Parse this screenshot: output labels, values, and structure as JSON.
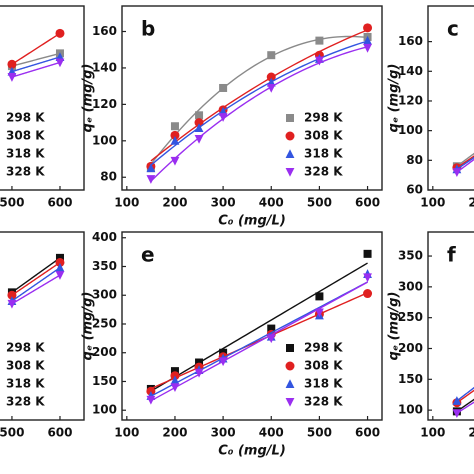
{
  "chart_data": [
    {
      "type": "scatter",
      "xlim": [
        90,
        650
      ],
      "xticks": [
        500,
        600
      ],
      "ylim": [
        73,
        174
      ],
      "x": [
        500,
        600
      ],
      "fit_degree": 2,
      "legend": "lower right",
      "series": [
        {
          "name": "298 K",
          "color": "#8a8a8a",
          "marker": "square",
          "values": [
            141,
            148
          ]
        },
        {
          "name": "308 K",
          "color": "#e02020",
          "marker": "circle",
          "values": [
            142,
            159
          ]
        },
        {
          "name": "318 K",
          "color": "#3355e0",
          "marker": "triangle-up",
          "values": [
            138,
            146
          ]
        },
        {
          "name": "328 K",
          "color": "#9a2ef0",
          "marker": "triangle-down",
          "values": [
            135,
            143
          ]
        }
      ]
    },
    {
      "type": "scatter",
      "panel_label": "b",
      "xlabel": "C₀ (mg/L)",
      "ylabel": "qₑ (mg/g)",
      "xlim": [
        90,
        630
      ],
      "xticks": [
        100,
        200,
        300,
        400,
        500,
        600
      ],
      "ylim": [
        73,
        174
      ],
      "yticks": [
        80,
        100,
        120,
        140,
        160
      ],
      "x": [
        150,
        200,
        250,
        300,
        400,
        500,
        600
      ],
      "fit_degree": 2,
      "legend": "lower right",
      "series": [
        {
          "name": "298 K",
          "color": "#8a8a8a",
          "marker": "square",
          "values": [
            85,
            108,
            114,
            129,
            147,
            155,
            157
          ]
        },
        {
          "name": "308 K",
          "color": "#e02020",
          "marker": "circle",
          "values": [
            86,
            103,
            110,
            117,
            135,
            147,
            162
          ]
        },
        {
          "name": "318 K",
          "color": "#3355e0",
          "marker": "triangle-up",
          "values": [
            85,
            100,
            107,
            116,
            132,
            145,
            155
          ]
        },
        {
          "name": "328 K",
          "color": "#9a2ef0",
          "marker": "triangle-down",
          "values": [
            79,
            89,
            101,
            113,
            129,
            144,
            151
          ]
        }
      ]
    },
    {
      "type": "scatter",
      "panel_label": "c",
      "ylabel": "qₑ (mg/g)",
      "xlim": [
        90,
        630
      ],
      "xticks": [
        100,
        200
      ],
      "ylim": [
        60,
        184
      ],
      "yticks": [
        60,
        80,
        100,
        120,
        140,
        160
      ],
      "x": [
        150,
        200
      ],
      "fit_degree": 2,
      "series": [
        {
          "color": "#8a8a8a",
          "marker": "square",
          "values": [
            76,
            88
          ]
        },
        {
          "color": "#e02020",
          "marker": "circle",
          "values": [
            75,
            86
          ]
        },
        {
          "color": "#3355e0",
          "marker": "triangle-up",
          "values": [
            74,
            85
          ]
        },
        {
          "color": "#9a2ef0",
          "marker": "triangle-down",
          "values": [
            72,
            84
          ]
        }
      ]
    },
    {
      "type": "scatter",
      "xlim": [
        90,
        650
      ],
      "xticks": [
        500,
        600
      ],
      "ylim": [
        83,
        410
      ],
      "x": [
        500,
        600
      ],
      "fit_degree": 1,
      "legend": "lower right",
      "series": [
        {
          "name": "298 K",
          "color": "#111111",
          "marker": "square",
          "values": [
            305,
            365
          ]
        },
        {
          "name": "308 K",
          "color": "#e02020",
          "marker": "circle",
          "values": [
            300,
            357
          ]
        },
        {
          "name": "318 K",
          "color": "#3355e0",
          "marker": "triangle-up",
          "values": [
            290,
            348
          ]
        },
        {
          "name": "328 K",
          "color": "#9a2ef0",
          "marker": "triangle-down",
          "values": [
            285,
            335
          ]
        }
      ]
    },
    {
      "type": "scatter",
      "panel_label": "e",
      "xlabel": "C₀ (mg/L)",
      "ylabel": "qₑ (mg/g)",
      "xlim": [
        90,
        630
      ],
      "xticks": [
        100,
        200,
        300,
        400,
        500,
        600
      ],
      "ylim": [
        83,
        410
      ],
      "yticks": [
        100,
        150,
        200,
        250,
        300,
        350,
        400
      ],
      "x": [
        150,
        200,
        250,
        300,
        400,
        500,
        600
      ],
      "fit_degree": 1,
      "legend": "lower right",
      "series": [
        {
          "name": "298 K",
          "color": "#111111",
          "marker": "square",
          "values": [
            137,
            168,
            183,
            200,
            242,
            298,
            372
          ]
        },
        {
          "name": "308 K",
          "color": "#e02020",
          "marker": "circle",
          "values": [
            133,
            160,
            175,
            193,
            232,
            267,
            303
          ]
        },
        {
          "name": "318 K",
          "color": "#3355e0",
          "marker": "triangle-up",
          "values": [
            125,
            152,
            170,
            190,
            228,
            265,
            337
          ]
        },
        {
          "name": "328 K",
          "color": "#9a2ef0",
          "marker": "triangle-down",
          "values": [
            118,
            140,
            165,
            185,
            225,
            270,
            331
          ]
        }
      ]
    },
    {
      "type": "scatter",
      "panel_label": "f",
      "ylabel": "qₑ (mg/g)",
      "xlim": [
        90,
        630
      ],
      "xticks": [
        100,
        200
      ],
      "ylim": [
        84,
        389
      ],
      "yticks": [
        100,
        150,
        200,
        250,
        300,
        350
      ],
      "x": [
        150,
        200
      ],
      "fit_degree": 1,
      "series": [
        {
          "color": "#111111",
          "marker": "square",
          "values": [
            98,
            125
          ]
        },
        {
          "color": "#e02020",
          "marker": "circle",
          "values": [
            112,
            140
          ]
        },
        {
          "color": "#3355e0",
          "marker": "triangle-up",
          "values": [
            115,
            145
          ]
        },
        {
          "color": "#9a2ef0",
          "marker": "triangle-down",
          "values": [
            95,
            120
          ]
        }
      ]
    }
  ]
}
